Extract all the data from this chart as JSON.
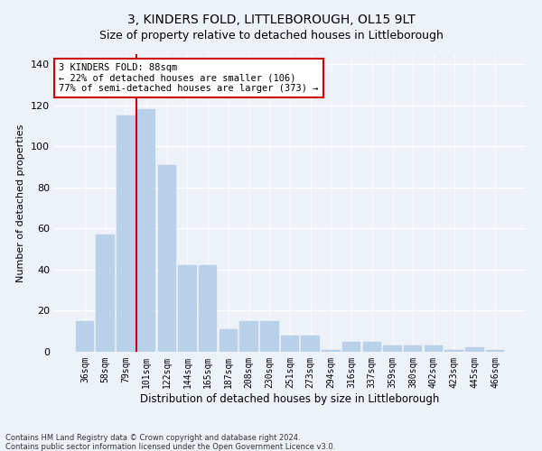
{
  "title": "3, KINDERS FOLD, LITTLEBOROUGH, OL15 9LT",
  "subtitle": "Size of property relative to detached houses in Littleborough",
  "xlabel": "Distribution of detached houses by size in Littleborough",
  "ylabel": "Number of detached properties",
  "categories": [
    "36sqm",
    "58sqm",
    "79sqm",
    "101sqm",
    "122sqm",
    "144sqm",
    "165sqm",
    "187sqm",
    "208sqm",
    "230sqm",
    "251sqm",
    "273sqm",
    "294sqm",
    "316sqm",
    "337sqm",
    "359sqm",
    "380sqm",
    "402sqm",
    "423sqm",
    "445sqm",
    "466sqm"
  ],
  "values": [
    15,
    57,
    115,
    118,
    91,
    42,
    42,
    11,
    15,
    15,
    8,
    8,
    1,
    5,
    5,
    3,
    3,
    3,
    1,
    2,
    1
  ],
  "bar_color": "#b8d0e8",
  "bar_edgecolor": "#b8d0e8",
  "red_line_color": "#cc0000",
  "red_line_x": 2.5,
  "ylim": [
    0,
    145
  ],
  "yticks": [
    0,
    20,
    40,
    60,
    80,
    100,
    120,
    140
  ],
  "annotation_text": "3 KINDERS FOLD: 88sqm\n← 22% of detached houses are smaller (106)\n77% of semi-detached houses are larger (373) →",
  "annotation_box_edgecolor": "#cc0000",
  "annotation_fontsize": 7.5,
  "title_fontsize": 10,
  "subtitle_fontsize": 9,
  "xlabel_fontsize": 8.5,
  "ylabel_fontsize": 8,
  "tick_fontsize": 7,
  "footer1": "Contains HM Land Registry data © Crown copyright and database right 2024.",
  "footer2": "Contains public sector information licensed under the Open Government Licence v3.0.",
  "bg_color": "#edf2f9",
  "plot_bg_color": "#edf2f9",
  "grid_color": "#ffffff"
}
